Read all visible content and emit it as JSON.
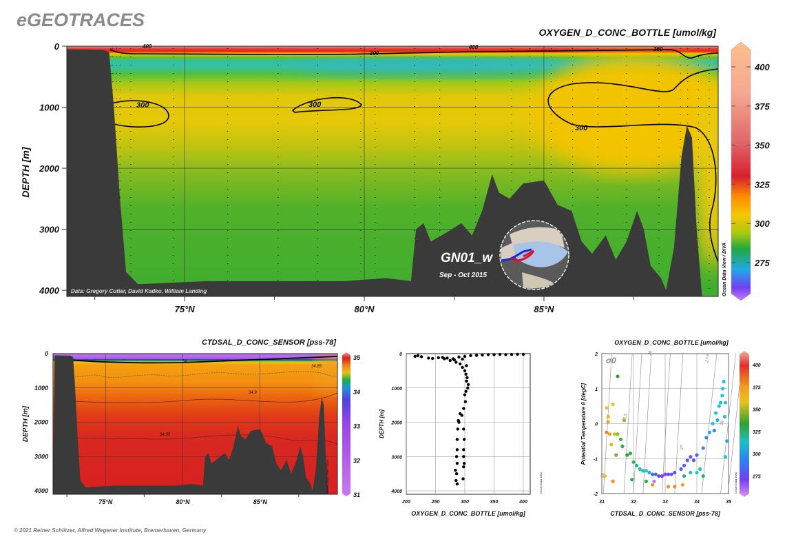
{
  "brand": "eGEOTRACES",
  "copyright": "© 2021 Reiner Schlitzer, Alfred Wegener Institute, Bremerhaven, Germany",
  "chart_data": [
    {
      "type": "heatmap",
      "title": "OXYGEN_D_CONC_BOTTLE [umol/kg]",
      "ylabel": "DEPTH [m]",
      "xlabel": "",
      "ylim": [
        4100,
        0
      ],
      "xlim": [
        71.7,
        89.9
      ],
      "x_ticks": [
        "75°N",
        "80°N",
        "85°N"
      ],
      "x_tick_values": [
        75,
        80,
        85
      ],
      "y_ticks": [
        "0",
        "1000",
        "2000",
        "3000",
        "4000"
      ],
      "colorbar": {
        "ticks": [
          "275",
          "300",
          "325",
          "350",
          "375",
          "400"
        ],
        "range": [
          251,
          415
        ],
        "credit": "Ocean Data View / DIVA"
      },
      "contour_labels": [
        "400",
        "300",
        "400",
        "350",
        "300",
        "300",
        "300"
      ],
      "data_credit": "Data: Gregory Cutter, David Kadko, William Landing",
      "section_name": "GN01_w",
      "section_date": "Sep - Oct 2015",
      "station_lats": [
        72.95,
        73.0,
        73.1,
        73.2,
        73.5,
        74.7,
        76.2,
        77.6,
        78.7,
        79.9,
        80.3,
        81.4,
        82.1,
        83.1,
        84.1,
        84.6,
        85.2,
        85.8,
        86.5,
        87.3,
        88.2,
        88.8,
        89.0,
        89.3,
        89.6
      ],
      "bathymetry": [
        [
          71.7,
          50
        ],
        [
          72.74,
          60
        ],
        [
          72.9,
          100
        ],
        [
          73.03,
          1000
        ],
        [
          73.2,
          2500
        ],
        [
          73.37,
          3700
        ],
        [
          73.7,
          3900
        ],
        [
          75.6,
          3850
        ],
        [
          79.45,
          3850
        ],
        [
          80.6,
          3800
        ],
        [
          81.3,
          3850
        ],
        [
          81.44,
          3000
        ],
        [
          81.65,
          2900
        ],
        [
          81.85,
          3200
        ],
        [
          82.3,
          3050
        ],
        [
          82.7,
          2900
        ],
        [
          83.0,
          3100
        ],
        [
          83.28,
          2700
        ],
        [
          83.56,
          2100
        ],
        [
          83.75,
          2400
        ],
        [
          84.04,
          2500
        ],
        [
          84.42,
          2250
        ],
        [
          85.0,
          2200
        ],
        [
          85.38,
          2600
        ],
        [
          85.77,
          2700
        ],
        [
          86.05,
          3200
        ],
        [
          86.34,
          3400
        ],
        [
          86.72,
          3100
        ],
        [
          87.0,
          3500
        ],
        [
          87.3,
          3200
        ],
        [
          87.59,
          2700
        ],
        [
          87.78,
          3000
        ],
        [
          87.97,
          3600
        ],
        [
          88.26,
          3800
        ],
        [
          88.4,
          4000
        ],
        [
          88.62,
          3300
        ],
        [
          88.83,
          1800
        ],
        [
          88.98,
          1300
        ],
        [
          89.12,
          1500
        ],
        [
          89.25,
          3000
        ],
        [
          89.4,
          4100
        ]
      ]
    },
    {
      "type": "heatmap",
      "title": "CTDSAL_D_CONC_SENSOR [pss-78]",
      "ylabel": "DEPTH [m]",
      "xlabel": "",
      "ylim": [
        4100,
        0
      ],
      "x_ticks": [
        "75°N",
        "80°N",
        "85°N"
      ],
      "y_ticks": [
        "0",
        "1000",
        "2000",
        "3000",
        "4000"
      ],
      "colorbar": {
        "ticks": [
          "31",
          "32",
          "33",
          "34",
          "35"
        ],
        "range": [
          31,
          35
        ],
        "credit": "Ocean Data View / DIVA"
      },
      "contour_labels": [
        "34",
        "34.85",
        "34.9",
        "34.95"
      ]
    },
    {
      "type": "scatter",
      "xlabel": "OXYGEN_D_CONC_BOTTLE [umol/kg]",
      "ylabel": "DEPTH [m]",
      "xlim": [
        200,
        425
      ],
      "ylim": [
        4100,
        0
      ],
      "x_ticks": [
        "200",
        "250",
        "300",
        "350",
        "400"
      ],
      "y_ticks": [
        "0",
        "1000",
        "2000",
        "3000",
        "4000"
      ],
      "credit": "Ocean Data View",
      "points": [
        [
          215,
          80
        ],
        [
          220,
          60
        ],
        [
          226,
          90
        ],
        [
          238,
          130
        ],
        [
          245,
          140
        ],
        [
          255,
          120
        ],
        [
          262,
          110
        ],
        [
          270,
          130
        ],
        [
          280,
          150
        ],
        [
          290,
          100
        ],
        [
          300,
          80
        ],
        [
          310,
          60
        ],
        [
          320,
          50
        ],
        [
          330,
          40
        ],
        [
          340,
          30
        ],
        [
          350,
          30
        ],
        [
          360,
          25
        ],
        [
          370,
          30
        ],
        [
          380,
          25
        ],
        [
          390,
          20
        ],
        [
          400,
          20
        ],
        [
          275,
          200
        ],
        [
          285,
          250
        ],
        [
          292,
          300
        ],
        [
          296,
          400
        ],
        [
          300,
          500
        ],
        [
          302,
          600
        ],
        [
          304,
          700
        ],
        [
          303,
          800
        ],
        [
          305,
          1000
        ],
        [
          302,
          1100
        ],
        [
          300,
          1200
        ],
        [
          301,
          1400
        ],
        [
          298,
          1600
        ],
        [
          295,
          1800
        ],
        [
          290,
          2000
        ],
        [
          288,
          2200
        ],
        [
          287,
          2500
        ],
        [
          287,
          2800
        ],
        [
          286,
          3000
        ],
        [
          287,
          3200
        ],
        [
          286,
          3500
        ],
        [
          287,
          3800
        ],
        [
          298,
          2200
        ],
        [
          299,
          2500
        ],
        [
          298,
          2800
        ],
        [
          298,
          3000
        ],
        [
          298,
          3300
        ],
        [
          297,
          3650
        ],
        [
          299,
          3200
        ],
        [
          289,
          1950
        ],
        [
          292,
          1750
        ],
        [
          285,
          3700
        ],
        [
          284,
          3400
        ],
        [
          265,
          150
        ],
        [
          282,
          180
        ],
        [
          296,
          160
        ],
        [
          303,
          350
        ],
        [
          306,
          900
        ]
      ]
    },
    {
      "type": "scatter",
      "title": "OXYGEN_D_CONC_BOTTLE [umol/kg]",
      "xlabel": "CTDSAL_D_CONC_SENSOR [pss-78]",
      "ylabel": "Potential Temperature θ [degC]",
      "xlim": [
        31,
        35
      ],
      "ylim": [
        -2,
        2
      ],
      "x_ticks": [
        "31",
        "32",
        "33",
        "34",
        "35"
      ],
      "y_ticks": [
        "2",
        "1",
        "0",
        "-1",
        "-2"
      ],
      "isopycnal_symbol": "σ0",
      "isopycnal_labels": [
        "25",
        "25.5",
        "26",
        "27",
        "27.5",
        "28"
      ],
      "colorbar": {
        "ticks": [
          "275",
          "300",
          "325",
          "350",
          "375",
          "400"
        ],
        "range": [
          253,
          416
        ]
      },
      "credit": "Ocean Data View",
      "points": [
        [
          31.1,
          -1.5,
          360
        ],
        [
          31.15,
          0.45,
          360
        ],
        [
          31.2,
          0.2,
          365
        ],
        [
          31.2,
          0.05,
          370
        ],
        [
          31.25,
          -0.3,
          370
        ],
        [
          31.15,
          -0.25,
          380
        ],
        [
          31.3,
          -0.6,
          355
        ],
        [
          31.35,
          0.55,
          360
        ],
        [
          31.4,
          -0.3,
          355
        ],
        [
          31.5,
          1.35,
          330
        ],
        [
          31.5,
          -0.3,
          345
        ],
        [
          31.45,
          -0.9,
          340
        ],
        [
          31.6,
          -0.45,
          335
        ],
        [
          31.65,
          -0.65,
          325
        ],
        [
          31.7,
          0.1,
          345
        ],
        [
          31.8,
          -0.9,
          330
        ],
        [
          31.9,
          -0.85,
          325
        ],
        [
          32.0,
          -1.1,
          320
        ],
        [
          32.1,
          -1.2,
          315
        ],
        [
          32.2,
          -1.3,
          310
        ],
        [
          32.3,
          -1.35,
          305
        ],
        [
          32.4,
          -1.35,
          300
        ],
        [
          32.5,
          -1.4,
          295
        ],
        [
          32.6,
          -1.45,
          285
        ],
        [
          32.7,
          -1.45,
          280
        ],
        [
          32.8,
          -1.5,
          275
        ],
        [
          32.9,
          -1.5,
          270
        ],
        [
          33.0,
          -1.45,
          270
        ],
        [
          33.1,
          -1.45,
          272
        ],
        [
          33.2,
          -1.45,
          275
        ],
        [
          33.3,
          -1.4,
          278
        ],
        [
          33.5,
          -1.3,
          280
        ],
        [
          33.6,
          -1.2,
          278
        ],
        [
          33.7,
          -1.05,
          275
        ],
        [
          33.8,
          -0.95,
          275
        ],
        [
          33.9,
          -1.05,
          280
        ],
        [
          34.0,
          -0.9,
          285
        ],
        [
          34.2,
          -0.7,
          290
        ],
        [
          34.3,
          -0.4,
          290
        ],
        [
          34.4,
          -0.25,
          295
        ],
        [
          34.5,
          0,
          300
        ],
        [
          34.6,
          0.3,
          300
        ],
        [
          34.7,
          0.5,
          300
        ],
        [
          34.8,
          0.8,
          300
        ],
        [
          34.85,
          1.2,
          300
        ],
        [
          34.9,
          0.6,
          300
        ],
        [
          34.95,
          -0.5,
          295
        ],
        [
          34.9,
          -0.95,
          300
        ],
        [
          32.65,
          -1.65,
          260
        ],
        [
          32.6,
          -1.75,
          375
        ],
        [
          33.1,
          -1.8,
          375
        ],
        [
          33.3,
          -1.8,
          375
        ],
        [
          33.55,
          -1.75,
          370
        ],
        [
          32.4,
          -1.65,
          325
        ],
        [
          31.95,
          -1.6,
          325
        ],
        [
          31.35,
          -1.65,
          375
        ],
        [
          33.6,
          -1.5,
          320
        ],
        [
          34.1,
          -1.3,
          310
        ],
        [
          34.2,
          -1.5,
          320
        ],
        [
          33.8,
          -1.4,
          305
        ],
        [
          34.0,
          -1.4,
          300
        ],
        [
          34.75,
          0.6,
          305
        ],
        [
          34.82,
          1.0,
          300
        ],
        [
          34.88,
          0.2,
          300
        ],
        [
          34.65,
          0.1,
          295
        ],
        [
          34.55,
          -0.2,
          290
        ]
      ]
    }
  ],
  "colors": {
    "land": "#3a3a3a",
    "track_west": "#1a2ad0",
    "track_east": "#e0102a"
  }
}
